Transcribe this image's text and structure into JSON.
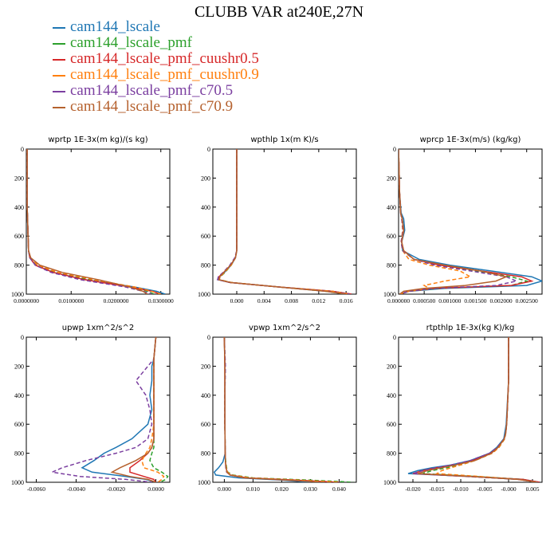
{
  "figure": {
    "title": "CLUBB VAR at240E,27N"
  },
  "series_styles": [
    {
      "name": "cam144_lscale",
      "color": "#1f77b4",
      "dash": "solid"
    },
    {
      "name": "cam144_lscale_pmf",
      "color": "#2ca02c",
      "dash": "dashed"
    },
    {
      "name": "cam144_lscale_pmf_cuushr0.5",
      "color": "#d62728",
      "dash": "solid"
    },
    {
      "name": "cam144_lscale_pmf_cuushr0.9",
      "color": "#ff7f0e",
      "dash": "dashed"
    },
    {
      "name": "cam144_lscale_pmf_c70.5",
      "color": "#7b3fa0",
      "dash": "dashed"
    },
    {
      "name": "cam144_lscale_pmf_c70.9",
      "color": "#b5612e",
      "dash": "solid"
    }
  ],
  "chart_data": [
    {
      "type": "line",
      "title": "wprtp  1E-3x(m kg)/(s kg)",
      "xlim": [
        0,
        0.032
      ],
      "ylim": [
        1000,
        0
      ],
      "xticks": [
        0,
        0.01,
        0.02,
        0.03
      ],
      "xtick_labels": [
        "0.0000000",
        "0.0100000",
        "0.0200000",
        "0.0300000"
      ],
      "yticks": [
        0,
        200,
        400,
        600,
        800,
        1000
      ],
      "ytick_labels": [
        "0",
        "200",
        "400",
        "600",
        "800",
        "1000"
      ],
      "y": [
        0,
        400,
        700,
        750,
        800,
        850,
        900,
        950,
        980,
        1000
      ],
      "series": [
        {
          "name": "cam144_lscale",
          "values": [
            0.0002,
            0.0002,
            0.0005,
            0.0008,
            0.002,
            0.006,
            0.013,
            0.024,
            0.029,
            0.031
          ]
        },
        {
          "name": "cam144_lscale_pmf",
          "values": [
            0.0002,
            0.0002,
            0.0005,
            0.0008,
            0.0022,
            0.0065,
            0.014,
            0.023,
            0.027,
            0.0285
          ]
        },
        {
          "name": "cam144_lscale_pmf_cuushr0.5",
          "values": [
            0.0002,
            0.0002,
            0.0005,
            0.0008,
            0.002,
            0.006,
            0.013,
            0.023,
            0.028,
            0.03
          ]
        },
        {
          "name": "cam144_lscale_pmf_cuushr0.9",
          "values": [
            0.0002,
            0.0002,
            0.0005,
            0.0009,
            0.0025,
            0.007,
            0.015,
            0.024,
            0.028,
            0.03
          ]
        },
        {
          "name": "cam144_lscale_pmf_c70.5",
          "values": [
            0.0002,
            0.0002,
            0.0005,
            0.0008,
            0.002,
            0.0055,
            0.012,
            0.022,
            0.026,
            0.028
          ]
        },
        {
          "name": "cam144_lscale_pmf_c70.9",
          "values": [
            0.0002,
            0.0002,
            0.0005,
            0.001,
            0.003,
            0.008,
            0.016,
            0.023,
            0.026,
            0.027
          ]
        }
      ]
    },
    {
      "type": "line",
      "title": "wpthlp  1x(m K)/s",
      "xlim": [
        -0.0035,
        0.0175
      ],
      "ylim": [
        1000,
        0
      ],
      "xticks": [
        0,
        0.004,
        0.008,
        0.012,
        0.016
      ],
      "xtick_labels": [
        "0.000",
        "0.004",
        "0.008",
        "0.012",
        "0.016"
      ],
      "yticks": [
        0,
        200,
        400,
        600,
        800,
        1000
      ],
      "ytick_labels": [
        "0",
        "200",
        "400",
        "600",
        "800",
        "1000"
      ],
      "y": [
        0,
        200,
        400,
        600,
        700,
        750,
        800,
        850,
        880,
        900,
        920,
        950,
        980,
        1000
      ],
      "series": [
        {
          "name": "cam144_lscale",
          "values": [
            0,
            0,
            0,
            0,
            0,
            -0.0002,
            -0.0008,
            -0.0018,
            -0.0025,
            -0.0028,
            -0.001,
            0.006,
            0.014,
            0.0168
          ]
        },
        {
          "name": "cam144_lscale_pmf",
          "values": [
            0,
            0,
            0,
            0,
            0,
            -0.0002,
            -0.0008,
            -0.0017,
            -0.0024,
            -0.0026,
            -0.0008,
            0.006,
            0.013,
            0.016
          ]
        },
        {
          "name": "cam144_lscale_pmf_cuushr0.5",
          "values": [
            0,
            0,
            0,
            0,
            0,
            -0.0002,
            -0.0009,
            -0.0019,
            -0.0026,
            -0.0027,
            -0.001,
            0.006,
            0.014,
            0.0168
          ]
        },
        {
          "name": "cam144_lscale_pmf_cuushr0.9",
          "values": [
            0,
            0,
            0,
            0,
            0,
            -0.0002,
            -0.0008,
            -0.0018,
            -0.0024,
            -0.0026,
            -0.0008,
            0.006,
            0.014,
            0.0165
          ]
        },
        {
          "name": "cam144_lscale_pmf_c70.5",
          "values": [
            0,
            0,
            0,
            0,
            0,
            -0.0003,
            -0.001,
            -0.002,
            -0.0027,
            -0.0028,
            -0.001,
            0.006,
            0.013,
            0.0165
          ]
        },
        {
          "name": "cam144_lscale_pmf_c70.9",
          "values": [
            0,
            0,
            0,
            0,
            0,
            -0.0002,
            -0.0009,
            -0.0019,
            -0.0025,
            -0.0026,
            -0.0009,
            0.006,
            0.013,
            0.016
          ]
        }
      ]
    },
    {
      "type": "line",
      "title": "wprcp  1E-3x(m/s) (kg/kg)",
      "xlim": [
        0,
        0.0028
      ],
      "ylim": [
        1000,
        0
      ],
      "xticks": [
        0,
        0.0005,
        0.001,
        0.0015,
        0.002,
        0.0025
      ],
      "xtick_labels": [
        "0.000000",
        "0.000500",
        "0.001000",
        "0.001500",
        "0.002000",
        "0.002500"
      ],
      "yticks": [
        0,
        200,
        400,
        600,
        800,
        1000
      ],
      "ytick_labels": [
        "0",
        "200",
        "400",
        "600",
        "800",
        "1000"
      ],
      "y": [
        0,
        300,
        440,
        480,
        560,
        640,
        700,
        760,
        800,
        840,
        880,
        910,
        940,
        960,
        980,
        1000
      ],
      "series": [
        {
          "name": "cam144_lscale",
          "values": [
            0,
            2e-05,
            5e-05,
            0.0001,
            0.00012,
            6e-05,
            8e-05,
            0.0004,
            0.001,
            0.0018,
            0.0026,
            0.0028,
            0.0025,
            0.0009,
            0.0002,
            2e-05
          ]
        },
        {
          "name": "cam144_lscale_pmf",
          "values": [
            0,
            2e-05,
            4e-05,
            7e-05,
            0.0001,
            5e-05,
            8e-05,
            0.0003,
            0.0008,
            0.0015,
            0.0022,
            0.0025,
            0.0022,
            0.0008,
            0.0002,
            2e-05
          ]
        },
        {
          "name": "cam144_lscale_pmf_cuushr0.5",
          "values": [
            0,
            2e-05,
            4e-05,
            7e-05,
            0.0001,
            6e-05,
            0.0001,
            0.0003,
            0.0008,
            0.0016,
            0.0024,
            0.0026,
            0.0022,
            0.0007,
            0.0002,
            2e-05
          ]
        },
        {
          "name": "cam144_lscale_pmf_cuushr0.9",
          "values": [
            0,
            2e-05,
            4e-05,
            6e-05,
            8e-05,
            5e-05,
            8e-05,
            0.0002,
            0.0006,
            0.0012,
            0.0014,
            0.0009,
            0.0005,
            0.0006,
            0.0002,
            2e-05
          ]
        },
        {
          "name": "cam144_lscale_pmf_c70.5",
          "values": [
            0,
            2e-05,
            4e-05,
            6e-05,
            9e-05,
            5e-05,
            8e-05,
            0.0003,
            0.0007,
            0.0014,
            0.0021,
            0.0023,
            0.0019,
            0.0007,
            0.0002,
            2e-05
          ]
        },
        {
          "name": "cam144_lscale_pmf_c70.9",
          "values": [
            0,
            2e-05,
            4e-05,
            7e-05,
            0.0001,
            6e-05,
            0.0001,
            0.0003,
            0.0009,
            0.0016,
            0.0021,
            0.0019,
            0.0013,
            0.0005,
            0.0001,
            2e-05
          ]
        }
      ]
    },
    {
      "type": "line",
      "title": "upwp  1xm^2/s^2",
      "xlim": [
        -0.0065,
        0.0007
      ],
      "ylim": [
        1000,
        0
      ],
      "xticks": [
        -0.006,
        -0.004,
        -0.002,
        0
      ],
      "xtick_labels": [
        "-0.0060",
        "-0.0040",
        "-0.0020",
        "0.0000"
      ],
      "yticks": [
        0,
        200,
        400,
        600,
        800,
        1000
      ],
      "ytick_labels": [
        "0",
        "200",
        "400",
        "600",
        "800",
        "1000"
      ],
      "y": [
        0,
        150,
        200,
        300,
        400,
        500,
        600,
        700,
        760,
        800,
        850,
        900,
        930,
        960,
        980,
        1000
      ],
      "series": [
        {
          "name": "cam144_lscale",
          "values": [
            0,
            -0.0001,
            -0.0002,
            -0.0002,
            -0.0003,
            -0.0002,
            -0.0004,
            -0.0012,
            -0.002,
            -0.0026,
            -0.0031,
            -0.0037,
            -0.0032,
            -0.0015,
            -0.0005,
            0
          ]
        },
        {
          "name": "cam144_lscale_pmf",
          "values": [
            0,
            -0.0001,
            -0.0001,
            -0.0001,
            -0.0001,
            -0.0001,
            -0.0001,
            -0.0001,
            -0.0001,
            -0.0002,
            -0.0003,
            -0.0001,
            0.0003,
            0.0006,
            0.0005,
            0.0002
          ]
        },
        {
          "name": "cam144_lscale_pmf_cuushr0.5",
          "values": [
            0,
            -0.0001,
            -0.0001,
            -0.0001,
            -0.0001,
            -0.0001,
            -0.0001,
            -0.0001,
            -0.0002,
            -0.0004,
            -0.0008,
            -0.0013,
            -0.0013,
            -0.0006,
            -0.0001,
            0
          ]
        },
        {
          "name": "cam144_lscale_pmf_cuushr0.9",
          "values": [
            0,
            -0.0001,
            -0.0001,
            -0.0001,
            -0.0001,
            -0.0001,
            -0.0001,
            -0.0002,
            -0.0003,
            -0.0005,
            -0.0007,
            -0.0006,
            0.0001,
            0.0004,
            0.0003,
            0.0001
          ]
        },
        {
          "name": "cam144_lscale_pmf_c70.5",
          "values": [
            0,
            -0.0001,
            -0.0004,
            -0.001,
            -0.0005,
            -0.0003,
            -0.0002,
            -0.0004,
            -0.001,
            -0.002,
            -0.0035,
            -0.0047,
            -0.0052,
            -0.0038,
            -0.0015,
            -0.0002
          ]
        },
        {
          "name": "cam144_lscale_pmf_c70.9",
          "values": [
            0,
            -0.0001,
            -0.0001,
            -0.0001,
            -0.0001,
            -0.0001,
            -0.0001,
            -0.0001,
            -0.0002,
            -0.0004,
            -0.001,
            -0.0018,
            -0.0022,
            -0.0013,
            -0.0004,
            0
          ]
        }
      ]
    },
    {
      "type": "line",
      "title": "vpwp  1xm^2/s^2",
      "xlim": [
        -0.004,
        0.046
      ],
      "ylim": [
        1000,
        0
      ],
      "xticks": [
        0,
        0.01,
        0.02,
        0.03,
        0.04
      ],
      "xtick_labels": [
        "0.000",
        "0.010",
        "0.020",
        "0.030",
        "0.040"
      ],
      "yticks": [
        0,
        200,
        400,
        600,
        800,
        1000
      ],
      "ytick_labels": [
        "0",
        "200",
        "400",
        "600",
        "800",
        "1000"
      ],
      "y": [
        0,
        200,
        400,
        600,
        800,
        860,
        900,
        930,
        950,
        970,
        985,
        1000
      ],
      "series": [
        {
          "name": "cam144_lscale",
          "values": [
            0,
            0.0002,
            0.0002,
            0.0002,
            0.0003,
            -0.0005,
            -0.002,
            -0.0035,
            -0.003,
            0.005,
            0.02,
            0.03
          ]
        },
        {
          "name": "cam144_lscale_pmf",
          "values": [
            0,
            0.0003,
            0.0002,
            0.0002,
            0.0003,
            0.0005,
            0.0008,
            0.0012,
            0.003,
            0.01,
            0.03,
            0.045
          ]
        },
        {
          "name": "cam144_lscale_pmf_cuushr0.5",
          "values": [
            0,
            0.0002,
            0.0002,
            0.0002,
            0.0003,
            0.0004,
            0.0006,
            0.001,
            0.002,
            0.008,
            0.025,
            0.04
          ]
        },
        {
          "name": "cam144_lscale_pmf_cuushr0.9",
          "values": [
            0,
            0.0002,
            0.0002,
            0.0002,
            0.0003,
            0.0004,
            0.0007,
            0.0011,
            0.0025,
            0.009,
            0.026,
            0.04
          ]
        },
        {
          "name": "cam144_lscale_pmf_c70.5",
          "values": [
            0,
            0.0004,
            0.0002,
            0.0002,
            0.0003,
            0.0004,
            0.0005,
            0.0008,
            0.002,
            0.007,
            0.022,
            0.035
          ]
        },
        {
          "name": "cam144_lscale_pmf_c70.9",
          "values": [
            0,
            0.0002,
            0.0002,
            0.0002,
            0.0003,
            0.0004,
            0.0006,
            0.0009,
            0.002,
            0.007,
            0.022,
            0.035
          ]
        }
      ]
    },
    {
      "type": "line",
      "title": "rtpthlp  1E-3x(kg K)/kg",
      "xlim": [
        -0.023,
        0.007
      ],
      "ylim": [
        1000,
        0
      ],
      "xticks": [
        -0.02,
        -0.015,
        -0.01,
        -0.005,
        0,
        0.005
      ],
      "xtick_labels": [
        "-0.020",
        "-0.015",
        "-0.010",
        "-0.005",
        "-0.000",
        "0.005"
      ],
      "yticks": [
        0,
        200,
        400,
        600,
        800,
        1000
      ],
      "ytick_labels": [
        "0",
        "200",
        "400",
        "600",
        "800",
        "1000"
      ],
      "y": [
        0,
        300,
        600,
        660,
        700,
        760,
        800,
        850,
        880,
        900,
        920,
        940,
        960,
        980,
        1000
      ],
      "series": [
        {
          "name": "cam144_lscale",
          "values": [
            0,
            0,
            -0.0005,
            -0.0008,
            -0.001,
            -0.0025,
            -0.004,
            -0.008,
            -0.012,
            -0.016,
            -0.019,
            -0.021,
            -0.008,
            0.003,
            0.0065
          ]
        },
        {
          "name": "cam144_lscale_pmf",
          "values": [
            0,
            0,
            -0.0004,
            -0.0006,
            -0.0008,
            -0.002,
            -0.0035,
            -0.007,
            -0.01,
            -0.013,
            -0.016,
            -0.018,
            -0.007,
            0.003,
            0.006
          ]
        },
        {
          "name": "cam144_lscale_pmf_cuushr0.5",
          "values": [
            0,
            0,
            -0.0004,
            -0.0006,
            -0.0009,
            -0.0022,
            -0.0038,
            -0.0075,
            -0.011,
            -0.015,
            -0.018,
            -0.02,
            -0.008,
            0.003,
            0.0065
          ]
        },
        {
          "name": "cam144_lscale_pmf_cuushr0.9",
          "values": [
            0,
            0,
            -0.0004,
            -0.0006,
            -0.0008,
            -0.002,
            -0.0034,
            -0.007,
            -0.01,
            -0.012,
            -0.014,
            -0.015,
            -0.006,
            0.002,
            0.006
          ]
        },
        {
          "name": "cam144_lscale_pmf_c70.5",
          "values": [
            0,
            0,
            -0.0004,
            -0.0006,
            -0.0009,
            -0.0024,
            -0.004,
            -0.008,
            -0.012,
            -0.015,
            -0.018,
            -0.02,
            -0.009,
            0.002,
            0.006
          ]
        },
        {
          "name": "cam144_lscale_pmf_c70.9",
          "values": [
            0,
            0,
            -0.0004,
            -0.0006,
            -0.0009,
            -0.0022,
            -0.0036,
            -0.007,
            -0.011,
            -0.014,
            -0.017,
            -0.019,
            -0.008,
            0.002,
            0.006
          ]
        }
      ]
    }
  ]
}
